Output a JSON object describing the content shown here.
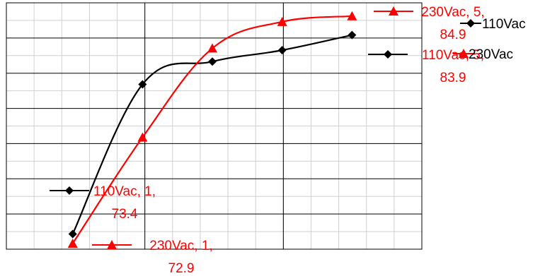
{
  "chart_data": {
    "type": "line",
    "title": "",
    "xlabel": "",
    "ylabel": "",
    "x": [
      1,
      2,
      3,
      4,
      5
    ],
    "xlim": [
      0.05,
      6
    ],
    "ylim": [
      72.6,
      85.6
    ],
    "grid": true,
    "legend_position": "right",
    "series": [
      {
        "name": "110Vac",
        "color": "#000000",
        "marker": "diamond",
        "values": [
          73.4,
          81.3,
          82.5,
          83.1,
          83.9
        ]
      },
      {
        "name": "230Vac",
        "color": "#ff0000",
        "marker": "triangle",
        "values": [
          72.9,
          78.5,
          83.2,
          84.6,
          84.9
        ]
      }
    ],
    "annotations": [
      {
        "series": "110Vac",
        "line1": "110Vac, 1,",
        "line2": "73.4"
      },
      {
        "series": "110Vac",
        "line1": "110Vac, 5,",
        "line2": "83.9"
      },
      {
        "series": "230Vac",
        "line1": "230Vac, 1,",
        "line2": "72.9"
      },
      {
        "series": "230Vac",
        "line1": "230Vac, 5,",
        "line2": "84.9"
      }
    ]
  }
}
